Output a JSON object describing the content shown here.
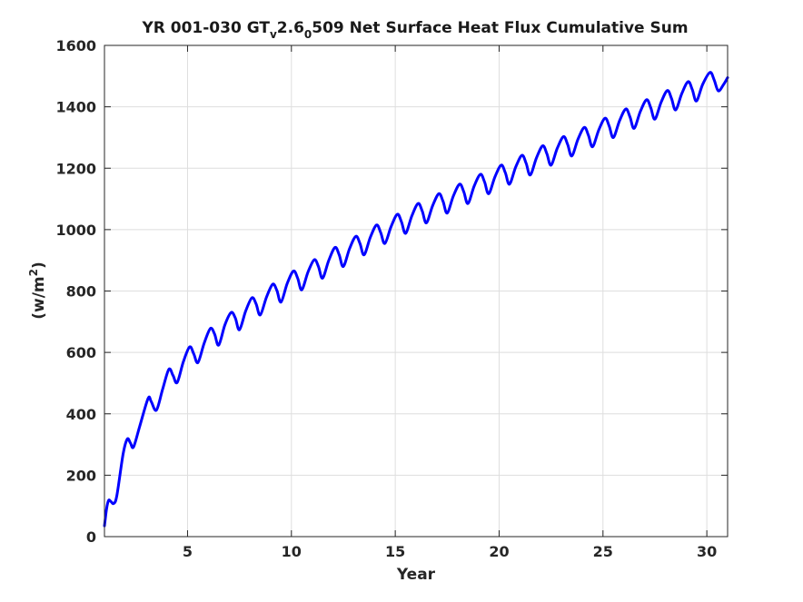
{
  "chart_data": {
    "type": "line",
    "title_parts": {
      "main": "YR 001-030 GT",
      "sub1": "v",
      "mid": "2.6",
      "sub2": "0",
      "tail": "509 Net Surface Heat Flux  Cumulative Sum"
    },
    "xlabel": "Year",
    "ylabel": "(w/m",
    "ylabel_sup": "2",
    "ylabel_close": ")",
    "xlim": [
      1,
      31
    ],
    "ylim": [
      0,
      1600
    ],
    "xticks": [
      5,
      10,
      15,
      20,
      25,
      30
    ],
    "yticks": [
      0,
      200,
      400,
      600,
      800,
      1000,
      1200,
      1400,
      1600
    ],
    "grid": true,
    "legend": "none",
    "series": [
      {
        "color": "#0000ff",
        "points": [
          [
            1.0,
            35
          ],
          [
            1.1,
            90
          ],
          [
            1.2,
            118
          ],
          [
            1.3,
            115
          ],
          [
            1.45,
            108
          ],
          [
            1.6,
            135
          ],
          [
            1.9,
            270
          ],
          [
            2.1,
            318
          ],
          [
            2.25,
            305
          ],
          [
            2.4,
            292
          ],
          [
            2.7,
            360
          ],
          [
            3.1,
            450
          ],
          [
            3.25,
            440
          ],
          [
            3.5,
            412
          ],
          [
            3.8,
            480
          ],
          [
            4.1,
            545
          ],
          [
            4.3,
            525
          ],
          [
            4.5,
            502
          ],
          [
            4.8,
            570
          ],
          [
            5.1,
            618
          ],
          [
            5.3,
            595
          ],
          [
            5.5,
            567
          ],
          [
            5.8,
            630
          ],
          [
            6.1,
            678
          ],
          [
            6.3,
            660
          ],
          [
            6.5,
            624
          ],
          [
            6.8,
            690
          ],
          [
            7.1,
            730
          ],
          [
            7.3,
            712
          ],
          [
            7.5,
            674
          ],
          [
            7.8,
            735
          ],
          [
            8.1,
            778
          ],
          [
            8.3,
            758
          ],
          [
            8.5,
            722
          ],
          [
            8.8,
            780
          ],
          [
            9.1,
            822
          ],
          [
            9.3,
            802
          ],
          [
            9.5,
            764
          ],
          [
            9.8,
            825
          ],
          [
            10.1,
            865
          ],
          [
            10.3,
            842
          ],
          [
            10.5,
            804
          ],
          [
            10.8,
            862
          ],
          [
            11.1,
            902
          ],
          [
            11.3,
            880
          ],
          [
            11.5,
            842
          ],
          [
            11.8,
            900
          ],
          [
            12.1,
            942
          ],
          [
            12.3,
            918
          ],
          [
            12.5,
            880
          ],
          [
            12.8,
            938
          ],
          [
            13.1,
            978
          ],
          [
            13.3,
            955
          ],
          [
            13.5,
            918
          ],
          [
            13.8,
            975
          ],
          [
            14.1,
            1015
          ],
          [
            14.3,
            990
          ],
          [
            14.5,
            955
          ],
          [
            14.8,
            1010
          ],
          [
            15.1,
            1050
          ],
          [
            15.3,
            1025
          ],
          [
            15.5,
            988
          ],
          [
            15.8,
            1045
          ],
          [
            16.1,
            1085
          ],
          [
            16.3,
            1060
          ],
          [
            16.5,
            1022
          ],
          [
            16.8,
            1078
          ],
          [
            17.1,
            1117
          ],
          [
            17.3,
            1092
          ],
          [
            17.5,
            1054
          ],
          [
            17.8,
            1110
          ],
          [
            18.1,
            1148
          ],
          [
            18.3,
            1123
          ],
          [
            18.5,
            1085
          ],
          [
            18.8,
            1142
          ],
          [
            19.1,
            1180
          ],
          [
            19.3,
            1155
          ],
          [
            19.5,
            1117
          ],
          [
            19.8,
            1172
          ],
          [
            20.1,
            1210
          ],
          [
            20.3,
            1185
          ],
          [
            20.5,
            1148
          ],
          [
            20.8,
            1204
          ],
          [
            21.1,
            1242
          ],
          [
            21.3,
            1216
          ],
          [
            21.5,
            1178
          ],
          [
            21.8,
            1234
          ],
          [
            22.1,
            1273
          ],
          [
            22.3,
            1247
          ],
          [
            22.5,
            1210
          ],
          [
            22.8,
            1265
          ],
          [
            23.1,
            1303
          ],
          [
            23.3,
            1277
          ],
          [
            23.5,
            1240
          ],
          [
            23.8,
            1295
          ],
          [
            24.1,
            1333
          ],
          [
            24.3,
            1307
          ],
          [
            24.5,
            1270
          ],
          [
            24.8,
            1325
          ],
          [
            25.1,
            1363
          ],
          [
            25.3,
            1337
          ],
          [
            25.5,
            1300
          ],
          [
            25.8,
            1355
          ],
          [
            26.1,
            1393
          ],
          [
            26.3,
            1367
          ],
          [
            26.5,
            1330
          ],
          [
            26.8,
            1385
          ],
          [
            27.1,
            1423
          ],
          [
            27.3,
            1397
          ],
          [
            27.5,
            1360
          ],
          [
            27.8,
            1415
          ],
          [
            28.1,
            1453
          ],
          [
            28.3,
            1427
          ],
          [
            28.5,
            1390
          ],
          [
            28.8,
            1444
          ],
          [
            29.1,
            1482
          ],
          [
            29.3,
            1456
          ],
          [
            29.5,
            1419
          ],
          [
            29.8,
            1473
          ],
          [
            30.15,
            1512
          ],
          [
            30.35,
            1488
          ],
          [
            30.55,
            1452
          ],
          [
            30.8,
            1472
          ],
          [
            31.0,
            1495
          ]
        ]
      }
    ]
  }
}
